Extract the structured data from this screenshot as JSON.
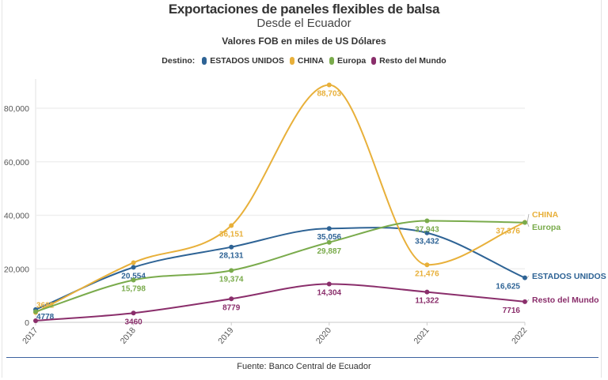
{
  "chart_data": {
    "type": "line",
    "title": "Exportaciones de paneles flexibles de balsa",
    "subtitle": "Desde el Ecuador",
    "units_note": "Valores FOB en miles de US Dólares",
    "legend_title": "Destino:",
    "legend_placement": "top",
    "x": [
      "2017",
      "2018",
      "2019",
      "2020",
      "2021",
      "2022"
    ],
    "ylim": [
      0,
      90000
    ],
    "yticks": [
      0,
      20000,
      40000,
      60000,
      80000
    ],
    "ytick_labels": [
      "0",
      "20,000",
      "40,000",
      "60,000",
      "80,000"
    ],
    "grid": true,
    "series": [
      {
        "name": "ESTADOS UNIDOS",
        "color": "#2e6395",
        "values": [
          4778,
          20554,
          28131,
          35056,
          33432,
          16625
        ],
        "labels": [
          "4778",
          "20,554",
          "28,131",
          "35,056",
          "33,432",
          "16,625"
        ]
      },
      {
        "name": "CHINA",
        "color": "#e8b03a",
        "values": [
          3682,
          22300,
          36151,
          88703,
          21476,
          37376
        ],
        "labels": [
          "3682",
          "",
          "36,151",
          "88,703",
          "21,476",
          "37,376"
        ]
      },
      {
        "name": "Europa",
        "color": "#7aab4c",
        "values": [
          4000,
          15798,
          19374,
          29887,
          37943,
          37300
        ],
        "labels": [
          "",
          "15,798",
          "19,374",
          "29,887",
          "37,943",
          ""
        ]
      },
      {
        "name": "Resto del Mundo",
        "color": "#8a2e6b",
        "values": [
          600,
          3460,
          8779,
          14304,
          11322,
          7716
        ],
        "labels": [
          "",
          "3460",
          "8779",
          "14,304",
          "11,322",
          "7716"
        ]
      }
    ]
  },
  "footer": {
    "source": "Fuente: Banco Central de Ecuador"
  }
}
